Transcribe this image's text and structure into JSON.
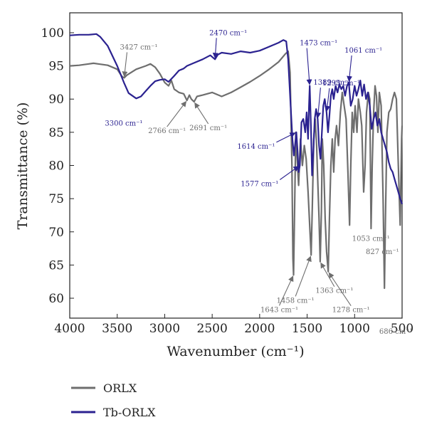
{
  "chart_data": {
    "type": "line",
    "xlabel": "Wavenumber (cm⁻¹)",
    "ylabel": "Transmittance (%)",
    "xlim": [
      4000,
      500
    ],
    "ylim": [
      57,
      103
    ],
    "x_ticks": [
      "4000",
      "3500",
      "3000",
      "2500",
      "2000",
      "1500",
      "1000",
      "500"
    ],
    "y_ticks": [
      "60",
      "65",
      "70",
      "75",
      "80",
      "85",
      "90",
      "95",
      "100"
    ],
    "legend_position": "bottom-left",
    "series": [
      {
        "name": "ORLX",
        "color": "#6e6e6e",
        "points": [
          [
            4000,
            95.0
          ],
          [
            3900,
            95.1
          ],
          [
            3800,
            95.3
          ],
          [
            3750,
            95.4
          ],
          [
            3700,
            95.3
          ],
          [
            3600,
            95.1
          ],
          [
            3500,
            94.5
          ],
          [
            3450,
            93.4
          ],
          [
            3427,
            93.2
          ],
          [
            3400,
            93.6
          ],
          [
            3300,
            94.5
          ],
          [
            3200,
            95.0
          ],
          [
            3150,
            95.3
          ],
          [
            3100,
            94.8
          ],
          [
            3050,
            93.8
          ],
          [
            3000,
            92.5
          ],
          [
            2960,
            92.0
          ],
          [
            2930,
            92.8
          ],
          [
            2900,
            91.5
          ],
          [
            2850,
            91.0
          ],
          [
            2800,
            90.8
          ],
          [
            2766,
            89.8
          ],
          [
            2740,
            90.6
          ],
          [
            2720,
            90.0
          ],
          [
            2691,
            89.6
          ],
          [
            2660,
            90.4
          ],
          [
            2600,
            90.6
          ],
          [
            2500,
            91.0
          ],
          [
            2400,
            90.4
          ],
          [
            2300,
            91.0
          ],
          [
            2200,
            91.8
          ],
          [
            2100,
            92.6
          ],
          [
            2000,
            93.5
          ],
          [
            1900,
            94.5
          ],
          [
            1800,
            95.6
          ],
          [
            1730,
            96.8
          ],
          [
            1700,
            97.2
          ],
          [
            1680,
            94.0
          ],
          [
            1660,
            80.0
          ],
          [
            1650,
            66.0
          ],
          [
            1643,
            63.5
          ],
          [
            1630,
            75.0
          ],
          [
            1620,
            85.0
          ],
          [
            1605,
            81.0
          ],
          [
            1590,
            77.0
          ],
          [
            1570,
            84.0
          ],
          [
            1550,
            80.0
          ],
          [
            1530,
            83.0
          ],
          [
            1510,
            81.0
          ],
          [
            1490,
            76.0
          ],
          [
            1470,
            70.0
          ],
          [
            1458,
            66.5
          ],
          [
            1445,
            74.0
          ],
          [
            1430,
            84.0
          ],
          [
            1415,
            87.0
          ],
          [
            1400,
            83.0
          ],
          [
            1389,
            78.0
          ],
          [
            1375,
            72.0
          ],
          [
            1363,
            65.5
          ],
          [
            1350,
            73.0
          ],
          [
            1340,
            84.0
          ],
          [
            1325,
            80.0
          ],
          [
            1310,
            72.0
          ],
          [
            1295,
            67.0
          ],
          [
            1278,
            64.0
          ],
          [
            1265,
            72.0
          ],
          [
            1250,
            80.0
          ],
          [
            1235,
            84.0
          ],
          [
            1220,
            79.0
          ],
          [
            1205,
            84.0
          ],
          [
            1190,
            86.0
          ],
          [
            1170,
            83.0
          ],
          [
            1150,
            88.0
          ],
          [
            1130,
            91.0
          ],
          [
            1110,
            89.0
          ],
          [
            1090,
            87.0
          ],
          [
            1070,
            79.0
          ],
          [
            1053,
            71.0
          ],
          [
            1040,
            80.0
          ],
          [
            1025,
            88.0
          ],
          [
            1010,
            85.0
          ],
          [
            995,
            89.0
          ],
          [
            975,
            85.0
          ],
          [
            960,
            90.0
          ],
          [
            940,
            88.0
          ],
          [
            925,
            86.0
          ],
          [
            905,
            76.0
          ],
          [
            890,
            80.0
          ],
          [
            875,
            88.0
          ],
          [
            855,
            91.0
          ],
          [
            840,
            90.0
          ],
          [
            827,
            70.5
          ],
          [
            815,
            80.0
          ],
          [
            800,
            88.0
          ],
          [
            785,
            92.0
          ],
          [
            770,
            90.5
          ],
          [
            755,
            85.0
          ],
          [
            740,
            91.0
          ],
          [
            720,
            89.0
          ],
          [
            700,
            75.0
          ],
          [
            686,
            61.5
          ],
          [
            675,
            72.0
          ],
          [
            660,
            85.0
          ],
          [
            640,
            88.0
          ],
          [
            620,
            88.5
          ],
          [
            600,
            90.0
          ],
          [
            580,
            91.0
          ],
          [
            560,
            90.0
          ],
          [
            540,
            80.0
          ],
          [
            520,
            71.0
          ],
          [
            505,
            84.0
          ],
          [
            500,
            86.0
          ]
        ]
      },
      {
        "name": "Tb-ORLX",
        "color": "#2b2290",
        "points": [
          [
            4000,
            99.6
          ],
          [
            3900,
            99.7
          ],
          [
            3800,
            99.7
          ],
          [
            3720,
            99.8
          ],
          [
            3680,
            99.4
          ],
          [
            3600,
            98.0
          ],
          [
            3500,
            95.0
          ],
          [
            3430,
            92.5
          ],
          [
            3380,
            90.9
          ],
          [
            3300,
            90.1
          ],
          [
            3250,
            90.4
          ],
          [
            3200,
            91.2
          ],
          [
            3150,
            92.0
          ],
          [
            3100,
            92.7
          ],
          [
            3050,
            92.9
          ],
          [
            3000,
            93.0
          ],
          [
            2960,
            92.6
          ],
          [
            2900,
            93.5
          ],
          [
            2850,
            94.3
          ],
          [
            2800,
            94.6
          ],
          [
            2766,
            95.0
          ],
          [
            2700,
            95.4
          ],
          [
            2600,
            96.0
          ],
          [
            2520,
            96.6
          ],
          [
            2470,
            96.0
          ],
          [
            2440,
            96.7
          ],
          [
            2400,
            97.0
          ],
          [
            2300,
            96.8
          ],
          [
            2200,
            97.2
          ],
          [
            2100,
            97.0
          ],
          [
            2000,
            97.3
          ],
          [
            1900,
            97.9
          ],
          [
            1800,
            98.5
          ],
          [
            1750,
            98.9
          ],
          [
            1720,
            98.7
          ],
          [
            1700,
            96.0
          ],
          [
            1685,
            92.0
          ],
          [
            1670,
            88.0
          ],
          [
            1655,
            84.0
          ],
          [
            1640,
            81.5
          ],
          [
            1628,
            83.0
          ],
          [
            1614,
            85.0
          ],
          [
            1600,
            82.0
          ],
          [
            1590,
            79.0
          ],
          [
            1577,
            80.0
          ],
          [
            1560,
            86.5
          ],
          [
            1540,
            87.0
          ],
          [
            1520,
            85.0
          ],
          [
            1505,
            88.0
          ],
          [
            1490,
            84.0
          ],
          [
            1480,
            89.0
          ],
          [
            1473,
            92.0
          ],
          [
            1460,
            86.0
          ],
          [
            1448,
            78.5
          ],
          [
            1435,
            82.0
          ],
          [
            1420,
            87.0
          ],
          [
            1405,
            88.5
          ],
          [
            1389,
            87.0
          ],
          [
            1375,
            83.0
          ],
          [
            1360,
            81.0
          ],
          [
            1345,
            85.0
          ],
          [
            1330,
            89.0
          ],
          [
            1315,
            90.0
          ],
          [
            1295,
            88.0
          ],
          [
            1280,
            85.0
          ],
          [
            1265,
            87.5
          ],
          [
            1250,
            90.5
          ],
          [
            1235,
            91.5
          ],
          [
            1220,
            90.0
          ],
          [
            1200,
            92.0
          ],
          [
            1180,
            91.0
          ],
          [
            1160,
            92.2
          ],
          [
            1140,
            91.5
          ],
          [
            1120,
            92.0
          ],
          [
            1100,
            90.5
          ],
          [
            1080,
            92.0
          ],
          [
            1061,
            92.5
          ],
          [
            1040,
            89.0
          ],
          [
            1020,
            90.0
          ],
          [
            1000,
            92.0
          ],
          [
            980,
            90.5
          ],
          [
            960,
            91.5
          ],
          [
            940,
            92.8
          ],
          [
            920,
            90.5
          ],
          [
            900,
            92.2
          ],
          [
            880,
            90.0
          ],
          [
            860,
            91.0
          ],
          [
            840,
            89.0
          ],
          [
            820,
            85.5
          ],
          [
            800,
            87.0
          ],
          [
            780,
            88.0
          ],
          [
            760,
            86.0
          ],
          [
            740,
            87.0
          ],
          [
            720,
            85.0
          ],
          [
            700,
            84.0
          ],
          [
            680,
            83.0
          ],
          [
            660,
            82.0
          ],
          [
            640,
            80.5
          ],
          [
            620,
            79.5
          ],
          [
            600,
            79.0
          ],
          [
            580,
            78.0
          ],
          [
            560,
            77.0
          ],
          [
            540,
            76.0
          ],
          [
            520,
            75.0
          ],
          [
            500,
            74.2
          ]
        ]
      }
    ],
    "annotations": [
      {
        "text": "3427 cm⁻¹",
        "series": "ORLX",
        "x": 3427,
        "y": 93.2,
        "arrow": true
      },
      {
        "text": "3300 cm⁻¹",
        "series": "Tb-ORLX",
        "x": 3300,
        "y": 90.1,
        "arrow": false
      },
      {
        "text": "2470 cm⁻¹",
        "series": "Tb-ORLX",
        "x": 2470,
        "y": 96.0,
        "arrow": true
      },
      {
        "text": "2766 cm⁻¹",
        "series": "ORLX",
        "x": 2766,
        "y": 89.8,
        "arrow": true
      },
      {
        "text": "2691 cm⁻¹",
        "series": "ORLX",
        "x": 2691,
        "y": 89.6,
        "arrow": true
      },
      {
        "text": "1473 cm⁻¹",
        "series": "Tb-ORLX",
        "x": 1473,
        "y": 92.0,
        "arrow": true
      },
      {
        "text": "1389 cm⁻¹",
        "series": "Tb-ORLX",
        "x": 1389,
        "y": 87.0,
        "arrow": true
      },
      {
        "text": "1295 cm⁻¹",
        "series": "Tb-ORLX",
        "x": 1295,
        "y": 88.0,
        "arrow": true
      },
      {
        "text": "1061 cm⁻¹",
        "series": "Tb-ORLX",
        "x": 1061,
        "y": 92.5,
        "arrow": true
      },
      {
        "text": "1614 cm⁻¹",
        "series": "Tb-ORLX",
        "x": 1614,
        "y": 85.0,
        "arrow": true
      },
      {
        "text": "1577 cm⁻¹",
        "series": "Tb-ORLX",
        "x": 1577,
        "y": 80.0,
        "arrow": true
      },
      {
        "text": "1643 cm⁻¹",
        "series": "ORLX",
        "x": 1643,
        "y": 63.5,
        "arrow": true
      },
      {
        "text": "1458 cm⁻¹",
        "series": "ORLX",
        "x": 1458,
        "y": 66.5,
        "arrow": true
      },
      {
        "text": "1363 cm⁻¹",
        "series": "ORLX",
        "x": 1363,
        "y": 65.5,
        "arrow": true
      },
      {
        "text": "1278 cm⁻¹",
        "series": "ORLX",
        "x": 1278,
        "y": 64.0,
        "arrow": true
      },
      {
        "text": "1053 cm⁻¹",
        "series": "ORLX",
        "x": 1053,
        "y": 71.0,
        "arrow": false
      },
      {
        "text": "827 cm⁻¹",
        "series": "ORLX",
        "x": 827,
        "y": 70.5,
        "arrow": false
      },
      {
        "text": "686 cm⁻¹",
        "series": "ORLX",
        "x": 686,
        "y": 61.5,
        "arrow": false
      }
    ]
  }
}
